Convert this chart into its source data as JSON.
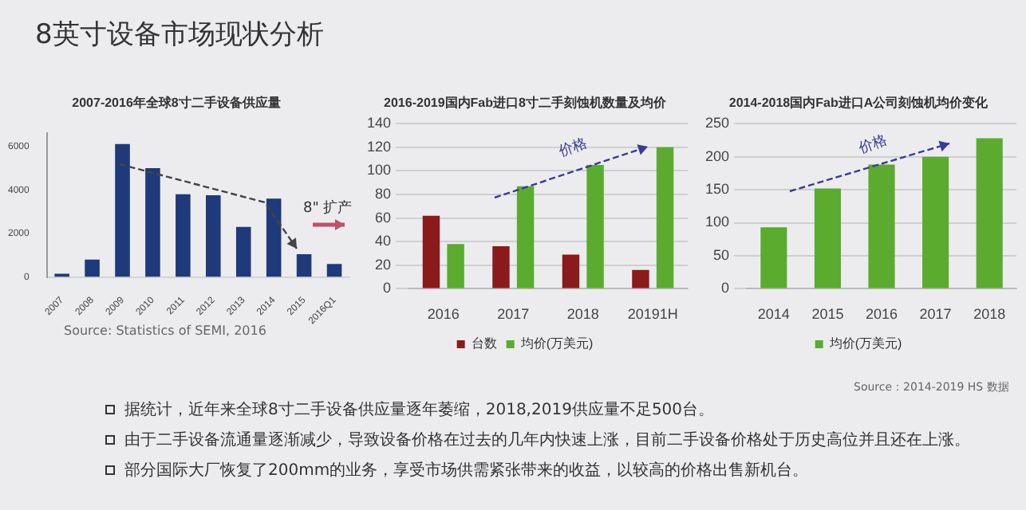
{
  "chart_data": [
    {
      "type": "bar",
      "title": "2007-2016年全球8寸二手设备供应量",
      "categories": [
        "2007",
        "2008",
        "2009",
        "2010",
        "2011",
        "2012",
        "2013",
        "2014",
        "2015",
        "2016Q1"
      ],
      "values": [
        150,
        800,
        6100,
        5000,
        3800,
        3750,
        2300,
        3600,
        1050,
        600
      ],
      "color": "#1f3a7a",
      "ylim": [
        0,
        6600
      ],
      "yticks": [
        0,
        2000,
        4000,
        6000
      ],
      "grid": false,
      "legend": false,
      "annotations": [
        "8英寸设备市场现状分析",
        "8\" 扩产",
        "Source:    Statistics of SEMI, 2016"
      ]
    },
    {
      "type": "bar",
      "title": "2016-2019国内Fab进口8寸二手刻蚀机数量及均价",
      "categories": [
        "2016",
        "2017",
        "2018",
        "20191H"
      ],
      "series": [
        {
          "name": "台数",
          "color": "#8b1a1a",
          "values": [
            62,
            36,
            29,
            16
          ]
        },
        {
          "name": "均价(万美元)",
          "color": "#5aab2e",
          "values": [
            38,
            87,
            105,
            120
          ]
        }
      ],
      "ylim": [
        0,
        140
      ],
      "yticks": [
        0,
        20,
        40,
        60,
        80,
        100,
        120,
        140
      ],
      "grid": "y",
      "legend": "bottom",
      "annotations": [
        "价格"
      ]
    },
    {
      "type": "bar",
      "title": "2014-2018国内Fab进口A公司刻蚀机均价变化",
      "categories": [
        "2014",
        "2015",
        "2016",
        "2017",
        "2018"
      ],
      "series": [
        {
          "name": "均价(万美元)",
          "color": "#5aab2e",
          "values": [
            93,
            152,
            188,
            200,
            228
          ]
        }
      ],
      "ylim": [
        0,
        250
      ],
      "yticks": [
        0,
        50,
        100,
        150,
        200,
        250
      ],
      "grid": "y",
      "legend": "bottom",
      "annotations": [
        "价格",
        "Source：2014-2019 HS 数据",
        "据统计，近年来全球8寸二手设备供应量逐年萎缩，2018,2019供应量不足500台。",
        "由于二手设备流通量逐渐减少，导致设备价格在过去的几年内快速上涨，目前二手设备价格处于历史高位并且还在上涨。",
        "部分国际大厂恢复了200mm的业务，享受市场供需紧张带来的收益，以较高的价格出售新机台。"
      ]
    }
  ]
}
